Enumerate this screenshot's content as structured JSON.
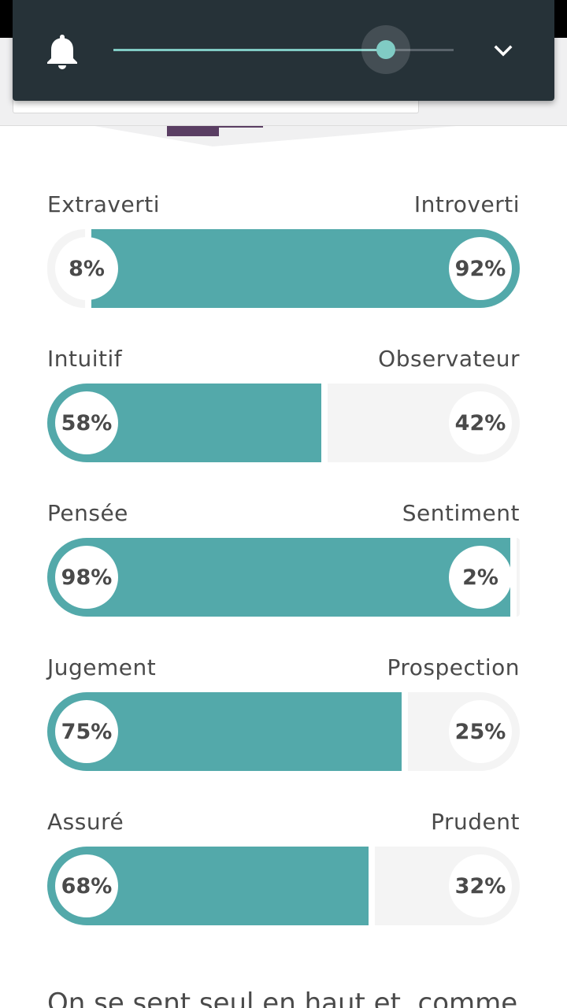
{
  "volume": {
    "level": 0.8,
    "colors": {
      "panel": "#263238",
      "accent": "#80cbc4"
    },
    "icons": {
      "left": "bell-icon",
      "right": "chevron-down-icon"
    }
  },
  "traits": [
    {
      "left_label": "Extraverti",
      "right_label": "Introverti",
      "left_pct": "8%",
      "right_pct": "92%",
      "left_value": 8,
      "right_value": 92,
      "dominant": "right"
    },
    {
      "left_label": "Intuitif",
      "right_label": "Observateur",
      "left_pct": "58%",
      "right_pct": "42%",
      "left_value": 58,
      "right_value": 42,
      "dominant": "left"
    },
    {
      "left_label": "Pensée",
      "right_label": "Sentiment",
      "left_pct": "98%",
      "right_pct": "2%",
      "left_value": 98,
      "right_value": 2,
      "dominant": "left"
    },
    {
      "left_label": "Jugement",
      "right_label": "Prospection",
      "left_pct": "75%",
      "right_pct": "25%",
      "left_value": 75,
      "right_value": 25,
      "dominant": "left"
    },
    {
      "left_label": "Assuré",
      "right_label": "Prudent",
      "left_pct": "68%",
      "right_pct": "32%",
      "left_value": 68,
      "right_value": 32,
      "dominant": "left"
    }
  ],
  "quote": "On se sent seul en haut et, comme",
  "colors": {
    "bar_fill": "#53a9aa",
    "bar_empty": "#f4f4f4",
    "text": "#4a4a4a"
  }
}
